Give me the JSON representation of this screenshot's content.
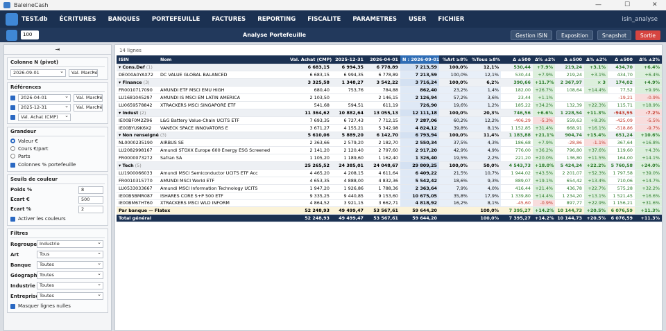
{
  "window": {
    "title": "BaleineCash"
  },
  "menu": {
    "db": "TEST.db",
    "items": [
      "ÉCRITURES",
      "BANQUES",
      "PORTEFEUILLE",
      "FACTURES",
      "REPORTING",
      "FISCALITE",
      "PARAMETRES",
      "USER",
      "FICHIER"
    ],
    "user": "isin_analyse"
  },
  "toolbar": {
    "limit": "100",
    "title": "Analyse Portefeuille",
    "buttons": [
      "Gestion ISIN",
      "Exposition",
      "Snapshot",
      "Sortie"
    ]
  },
  "side": {
    "collapse": "⇥",
    "pivot": {
      "title": "Colonne N (pivot)",
      "date": "2026-09-01",
      "measure": "Val. Marché"
    },
    "references": {
      "title": "Références",
      "rows": [
        [
          "2026-04-01",
          "Val. Marché"
        ],
        [
          "2025-12-31",
          "Val. Marché"
        ],
        [
          "Val. Achat (CMP)"
        ]
      ]
    },
    "grandeur": {
      "title": "Grandeur",
      "options": [
        "Valeur €",
        "Cours €/part",
        "Parts"
      ],
      "checkbox": "Colonnes % portefeuille"
    },
    "seuils": {
      "title": "Seuils de couleur",
      "fields": [
        [
          "Poids %",
          "8"
        ],
        [
          "Écart €",
          "500"
        ],
        [
          "Écart %",
          "2"
        ]
      ],
      "checkbox": "Activer les couleurs"
    },
    "filtres": {
      "title": "Filtres",
      "fields": [
        [
          "Regroupement",
          "Industrie"
        ],
        [
          "Art",
          "Tous"
        ],
        [
          "Banque",
          "Toutes"
        ],
        [
          "Géographie",
          "Toutes"
        ],
        [
          "Industrie",
          "Toutes"
        ],
        [
          "Entreprise",
          "Toutes"
        ]
      ],
      "checkbox": "Masquer lignes nulles"
    }
  },
  "table": {
    "count": "14 lignes",
    "header": [
      "ISIN",
      "Nom",
      "Val. Achat (CMP)",
      "2025-12-31",
      "2026-04-01",
      "N : 2026-09-01",
      "%Art ≥8%",
      "%Tous ≥8%",
      "Δ ±500",
      "Δ% ±2%",
      "Δ ±500",
      "Δ% ±2%",
      "Δ ±500",
      "Δ% ±2%"
    ],
    "rows": [
      {
        "kind": "group",
        "count": "(1)",
        "cells": [
          "Cons.Def",
          null,
          "6 683,15",
          "6 994,35",
          "6 778,89",
          "7 213,59",
          "100,0%",
          "12,1%",
          "530,44",
          "+7.9%",
          "219,24",
          "+3.1%",
          "434,70",
          "+6.4%"
        ]
      },
      {
        "kind": "item",
        "cells": [
          "DE000A0YAX72",
          "DC VALUE GLOBAL BALANCED",
          "6 683,15",
          "6 994,35",
          "6 778,89",
          "7 213,59",
          "100,0%",
          "12,1%",
          "530,44",
          "+7.9%",
          "219,24",
          "+3.1%",
          "434,70",
          "+6.4%"
        ]
      },
      {
        "kind": "group",
        "count": "(3)",
        "cells": [
          "Finance",
          null,
          "3 325,58",
          "1 348,27",
          "3 542,22",
          "3 716,24",
          "100,0%",
          "6,2%",
          "390,66",
          "+11.7%",
          "2 367,97",
          "× 3",
          "174,02",
          "+4.9%"
        ]
      },
      {
        "kind": "item",
        "cells": [
          "FR0010717090",
          "AMUNDI ETF MSCI EMU HIGH",
          "680,40",
          "753,76",
          "784,88",
          "862,40",
          "23,2%",
          "1,4%",
          "182,00",
          "+26.7%",
          "108,64",
          "+14.4%",
          "77,52",
          "+9.9%"
        ]
      },
      {
        "kind": "item",
        "cells": [
          "LU1681045297",
          "AMUNDI IS MSCI EM LATIN AMERICA",
          "2 103,50",
          null,
          "2 146,15",
          "2 126,94",
          "57,2%",
          "3,6%",
          "23,44",
          "+1.1%",
          null,
          null,
          "-19,21",
          "-0.9%"
        ]
      },
      {
        "kind": "item",
        "cells": [
          "LU0659578842",
          "XTRACKERS MSCI SINGAPORE ETF",
          "541,68",
          "594,51",
          "611,19",
          "726,90",
          "19,6%",
          "1,2%",
          "185,22",
          "+34.2%",
          "132,39",
          "+22.3%",
          "115,71",
          "+18.9%"
        ]
      },
      {
        "kind": "group",
        "count": "(2)",
        "cells": [
          "Indust",
          null,
          "11 364,62",
          "10 882,64",
          "13 055,13",
          "12 111,18",
          "100,0%",
          "20,3%",
          "746,56",
          "+6.6%",
          "1 228,54",
          "+11.3%",
          "-943,95",
          "-7.2%"
        ]
      },
      {
        "kind": "item",
        "cells": [
          "IE00BF0M2Z96",
          "L&G Battery Value-Chain UCITS ETF",
          "7 693,35",
          "6 727,43",
          "7 712,15",
          "7 287,06",
          "60,2%",
          "12,2%",
          "-406,29",
          "-5.3%",
          "559,63",
          "+8.3%",
          "-425,09",
          "-5.5%"
        ]
      },
      {
        "kind": "item",
        "cells": [
          "IE00BYU9K6X2",
          "VANECK SPACE INNOVATORS E",
          "3 671,27",
          "4 155,21",
          "5 342,98",
          "4 824,12",
          "39,8%",
          "8,1%",
          "1 152,85",
          "+31.4%",
          "668,91",
          "+16.1%",
          "-518,86",
          "-9.7%"
        ]
      },
      {
        "kind": "group",
        "count": "(3)",
        "cells": [
          "Non renseigné",
          null,
          "5 610,06",
          "5 889,20",
          "6 142,70",
          "6 793,94",
          "100,0%",
          "11,4%",
          "1 183,88",
          "+21.1%",
          "904,74",
          "+15.4%",
          "651,24",
          "+10.6%"
        ]
      },
      {
        "kind": "item",
        "cells": [
          "NL0000235190",
          "AIRBUS SE",
          "2 363,66",
          "2 579,20",
          "2 182,70",
          "2 550,34",
          "37,5%",
          "4,3%",
          "186,68",
          "+7.9%",
          "-28,86",
          "-1.1%",
          "367,64",
          "+16.8%"
        ]
      },
      {
        "kind": "item",
        "cells": [
          "LU2082998167",
          "Amundi STOXX Europe 600 Energy ESG Screened",
          "2 141,20",
          "2 120,40",
          "2 797,60",
          "2 917,20",
          "42,9%",
          "4,9%",
          "776,00",
          "+36.2%",
          "796,80",
          "+37.6%",
          "119,60",
          "+4.3%"
        ]
      },
      {
        "kind": "item",
        "cells": [
          "FR0000073272",
          "Safran SA",
          "1 105,20",
          "1 189,60",
          "1 162,40",
          "1 326,40",
          "19,5%",
          "2,2%",
          "221,20",
          "+20.0%",
          "136,80",
          "+11.5%",
          "164,00",
          "+14.1%"
        ]
      },
      {
        "kind": "group",
        "count": "(5)",
        "cells": [
          "Tech",
          null,
          "25 265,52",
          "24 385,01",
          "24 048,67",
          "29 809,25",
          "100,0%",
          "50,0%",
          "4 543,73",
          "+18.0%",
          "5 424,24",
          "+22.2%",
          "5 760,58",
          "+24.0%"
        ]
      },
      {
        "kind": "item",
        "cells": [
          "LU1900066033",
          "Amundi MSCI Semiconductor UCITS ETF Acc",
          "4 465,20",
          "4 208,15",
          "4 611,64",
          "6 409,22",
          "21,5%",
          "10,7%",
          "1 944,02",
          "+43.5%",
          "2 201,07",
          "+52.3%",
          "1 797,58",
          "+39.0%"
        ]
      },
      {
        "kind": "item",
        "cells": [
          "FR0010315770",
          "AMUNDI MSCI World ETF",
          "4 653,35",
          "4 888,00",
          "4 832,36",
          "5 542,42",
          "18,6%",
          "9,3%",
          "889,07",
          "+19.1%",
          "654,42",
          "+13.4%",
          "710,06",
          "+14.7%"
        ]
      },
      {
        "kind": "item",
        "cells": [
          "LU0533033667",
          "Amundi MSCI Information Technology UCITS",
          "1 947,20",
          "1 926,86",
          "1 788,36",
          "2 363,64",
          "7,9%",
          "4,0%",
          "416,44",
          "+21.4%",
          "436,78",
          "+22.7%",
          "575,28",
          "+32.2%"
        ]
      },
      {
        "kind": "item",
        "cells": [
          "IE00B5BMR087",
          "ISHARES CORE S+P 500 ETF",
          "9 335,25",
          "9 440,85",
          "9 153,60",
          "10 675,05",
          "35,8%",
          "17,9%",
          "1 339,80",
          "+14.4%",
          "1 234,20",
          "+13.1%",
          "1 521,45",
          "+16.6%"
        ]
      },
      {
        "kind": "item",
        "cells": [
          "IE00BM67HT60",
          "XTRACKERS MSCI WLD INFORM",
          "4 864,52",
          "3 921,15",
          "3 662,71",
          "4 818,92",
          "16,2%",
          "8,1%",
          "-45,60",
          "-0.9%",
          "897,77",
          "+22.9%",
          "1 156,21",
          "+31.6%"
        ]
      },
      {
        "kind": "bank",
        "cells": [
          "Par banque — Flatex",
          null,
          "52 248,93",
          "49 499,47",
          "53 567,61",
          "59 644,20",
          null,
          "100,0%",
          "7 395,27",
          "+14.2%",
          "10 144,73",
          "+20.5%",
          "6 076,59",
          "+11.3%"
        ]
      },
      {
        "kind": "total",
        "cells": [
          "Total général",
          null,
          "52 248,93",
          "49 499,47",
          "53 567,61",
          "59 644,20",
          null,
          "100,0%",
          "7 395,27",
          "+14.2%",
          "10 144,73",
          "+20.5%",
          "6 076,59",
          "+11.3%"
        ]
      }
    ]
  }
}
